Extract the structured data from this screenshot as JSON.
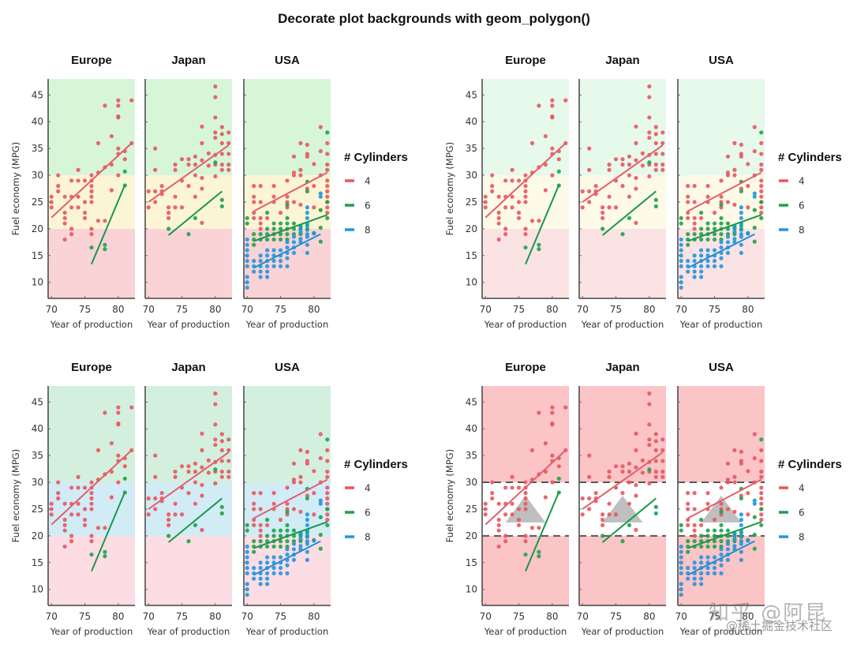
{
  "title": "Decorate plot backgrounds with geom_polygon()",
  "watermark": {
    "line1": "知乎 @阿昆",
    "line2": "@稀土掘金技术社区"
  },
  "chart_data": [
    {
      "type": "scatter",
      "variant": "three-band background (red / yellow / green)",
      "position": "top-left",
      "facets": [
        "Europe",
        "Japan",
        "USA"
      ],
      "xlabel": "Year of production",
      "ylabel": "Fuel economy (MPG)",
      "xticks": [
        70,
        75,
        80
      ],
      "yticks": [
        10,
        15,
        20,
        25,
        30,
        35,
        40,
        45
      ],
      "xlim": [
        69.5,
        82.5
      ],
      "ylim": [
        7,
        48
      ],
      "background_bands": [
        {
          "from": 7,
          "to": 20,
          "color": "#f9d3d5"
        },
        {
          "from": 20,
          "to": 30,
          "color": "#fbf5d6"
        },
        {
          "from": 30,
          "to": 48,
          "color": "#d7f6d8"
        }
      ],
      "dashed_lines": [],
      "triangle": false,
      "legend": {
        "title": "# Cylinders",
        "entries": [
          {
            "label": "4",
            "color": "#e8565f"
          },
          {
            "label": "6",
            "color": "#1ea24a"
          },
          {
            "label": "8",
            "color": "#1f96e0"
          }
        ]
      }
    },
    {
      "type": "scatter",
      "variant": "three-band background (pale pink / pale yellow / pale green)",
      "position": "top-right",
      "facets": [
        "Europe",
        "Japan",
        "USA"
      ],
      "xlabel": "Year of production",
      "ylabel": "Fuel economy (MPG)",
      "xticks": [
        70,
        75,
        80
      ],
      "yticks": [
        10,
        15,
        20,
        25,
        30,
        35,
        40,
        45
      ],
      "xlim": [
        69.5,
        82.5
      ],
      "ylim": [
        7,
        48
      ],
      "background_bands": [
        {
          "from": 7,
          "to": 20,
          "color": "#fbe3e4"
        },
        {
          "from": 20,
          "to": 30,
          "color": "#fdfae8"
        },
        {
          "from": 30,
          "to": 48,
          "color": "#e6f9ea"
        }
      ],
      "dashed_lines": [],
      "triangle": false,
      "legend": {
        "title": "# Cylinders",
        "entries": [
          {
            "label": "4",
            "color": "#e8565f"
          },
          {
            "label": "6",
            "color": "#1ea24a"
          },
          {
            "label": "8",
            "color": "#1f96e0"
          }
        ]
      }
    },
    {
      "type": "scatter",
      "variant": "three-band background (pink / light blue / mint)",
      "position": "bottom-left",
      "facets": [
        "Europe",
        "Japan",
        "USA"
      ],
      "xlabel": "Year of production",
      "ylabel": "Fuel economy (MPG)",
      "xticks": [
        70,
        75,
        80
      ],
      "yticks": [
        10,
        15,
        20,
        25,
        30,
        35,
        40,
        45
      ],
      "xlim": [
        69.5,
        82.5
      ],
      "ylim": [
        7,
        48
      ],
      "background_bands": [
        {
          "from": 7,
          "to": 20,
          "color": "#fbdde3"
        },
        {
          "from": 20,
          "to": 30,
          "color": "#d2ecf6"
        },
        {
          "from": 30,
          "to": 48,
          "color": "#d3f0de"
        }
      ],
      "dashed_lines": [],
      "triangle": false,
      "legend": {
        "title": "# Cylinders",
        "entries": [
          {
            "label": "4",
            "color": "#e8565f"
          },
          {
            "label": "6",
            "color": "#1ea24a"
          },
          {
            "label": "8",
            "color": "#1f96e0"
          }
        ]
      }
    },
    {
      "type": "scatter",
      "variant": "pink background with white band, dashed lines at 20 and 30, grey triangle",
      "position": "bottom-right",
      "facets": [
        "Europe",
        "Japan",
        "USA"
      ],
      "xlabel": "Year of production",
      "ylabel": "Fuel economy (MPG)",
      "xticks": [
        70,
        75,
        80
      ],
      "yticks": [
        10,
        15,
        20,
        25,
        30,
        35,
        40,
        45
      ],
      "xlim": [
        69.5,
        82.5
      ],
      "ylim": [
        7,
        48
      ],
      "background_bands": [
        {
          "from": 7,
          "to": 20,
          "color": "#fbc4c6"
        },
        {
          "from": 20,
          "to": 30,
          "color": "#ffffff"
        },
        {
          "from": 30,
          "to": 48,
          "color": "#fbc4c6"
        }
      ],
      "dashed_lines": [
        20,
        30
      ],
      "triangle": {
        "points": [
          [
            73,
            22.5
          ],
          [
            76,
            27.5
          ],
          [
            79,
            22.5
          ]
        ],
        "color": "#b8b8b8"
      },
      "legend": {
        "title": "# Cylinders",
        "entries": [
          {
            "label": "4",
            "color": "#e8565f"
          },
          {
            "label": "6",
            "color": "#1ea24a"
          },
          {
            "label": "8",
            "color": "#1f96e0"
          }
        ]
      }
    }
  ],
  "series_points": {
    "Europe": {
      "4": [
        [
          70,
          26
        ],
        [
          70,
          25
        ],
        [
          70,
          24
        ],
        [
          71,
          30
        ],
        [
          71,
          27
        ],
        [
          71,
          28
        ],
        [
          72,
          26
        ],
        [
          72,
          23
        ],
        [
          72,
          22
        ],
        [
          72,
          21
        ],
        [
          72,
          18
        ],
        [
          73,
          29
        ],
        [
          73,
          26
        ],
        [
          73,
          24
        ],
        [
          73,
          20
        ],
        [
          73,
          19
        ],
        [
          74,
          31
        ],
        [
          74,
          29
        ],
        [
          74,
          26
        ],
        [
          74,
          24
        ],
        [
          75,
          29
        ],
        [
          75,
          25
        ],
        [
          75,
          23
        ],
        [
          75,
          22
        ],
        [
          76,
          30
        ],
        [
          76,
          29
        ],
        [
          76,
          28
        ],
        [
          76,
          27
        ],
        [
          76,
          26
        ],
        [
          76,
          25
        ],
        [
          76,
          20
        ],
        [
          76,
          19
        ],
        [
          77,
          36
        ],
        [
          77,
          30.5
        ],
        [
          77,
          21.5
        ],
        [
          78,
          43
        ],
        [
          78,
          31.5
        ],
        [
          78,
          21.5
        ],
        [
          79,
          37.3
        ],
        [
          79,
          32
        ],
        [
          79,
          27.2
        ],
        [
          80,
          44
        ],
        [
          80,
          43
        ],
        [
          80,
          41
        ],
        [
          80,
          40.8
        ],
        [
          80,
          35
        ],
        [
          80,
          34
        ],
        [
          80,
          30
        ],
        [
          81,
          34.5
        ],
        [
          81,
          33
        ],
        [
          82,
          44
        ],
        [
          82,
          36
        ]
      ],
      "6": [
        [
          76,
          16.5
        ],
        [
          78,
          17
        ],
        [
          78,
          16.2
        ],
        [
          81,
          30.7
        ],
        [
          81,
          28.1
        ]
      ],
      "8": []
    },
    "Japan": {
      "4": [
        [
          70,
          27
        ],
        [
          70,
          24
        ],
        [
          71,
          35
        ],
        [
          71,
          31
        ],
        [
          71,
          27
        ],
        [
          71,
          25
        ],
        [
          72,
          28
        ],
        [
          72,
          27
        ],
        [
          72,
          26.5
        ],
        [
          73,
          24
        ],
        [
          73,
          23
        ],
        [
          73,
          22
        ],
        [
          74,
          32
        ],
        [
          74,
          31
        ],
        [
          74,
          26
        ],
        [
          74,
          24
        ],
        [
          75,
          33
        ],
        [
          75,
          29
        ],
        [
          75,
          24
        ],
        [
          76,
          33
        ],
        [
          76,
          32
        ],
        [
          76,
          28
        ],
        [
          77,
          33.5
        ],
        [
          77,
          32
        ],
        [
          77,
          30
        ],
        [
          77,
          26
        ],
        [
          78,
          39.1
        ],
        [
          78,
          36
        ],
        [
          78,
          32.8
        ],
        [
          78,
          29.5
        ],
        [
          78,
          27.5
        ],
        [
          78,
          21.1
        ],
        [
          79,
          34.1
        ],
        [
          79,
          31.8
        ],
        [
          80,
          46.6
        ],
        [
          80,
          44.6
        ],
        [
          80,
          40.8
        ],
        [
          80,
          38
        ],
        [
          80,
          37
        ],
        [
          80,
          33.8
        ],
        [
          80,
          32
        ],
        [
          80,
          29.8
        ],
        [
          81,
          39
        ],
        [
          81,
          37.7
        ],
        [
          81,
          36
        ],
        [
          81,
          34
        ],
        [
          81,
          32
        ],
        [
          81,
          31
        ],
        [
          82,
          38
        ],
        [
          82,
          36
        ],
        [
          82,
          34
        ],
        [
          82,
          32
        ],
        [
          82,
          31
        ]
      ],
      "6": [
        [
          73,
          20
        ],
        [
          76,
          19
        ],
        [
          77,
          22
        ],
        [
          80,
          32.4
        ],
        [
          81,
          25.4
        ],
        [
          81,
          24.2
        ]
      ],
      "8": []
    },
    "USA": {
      "4": [
        [
          71,
          28
        ],
        [
          71,
          26
        ],
        [
          71,
          25
        ],
        [
          71,
          23
        ],
        [
          71,
          22
        ],
        [
          72,
          28
        ],
        [
          72,
          25
        ],
        [
          72,
          22
        ],
        [
          72,
          21
        ],
        [
          72,
          20
        ],
        [
          73,
          22
        ],
        [
          74,
          28
        ],
        [
          74,
          26
        ],
        [
          74,
          25
        ],
        [
          75,
          23
        ],
        [
          76,
          29
        ],
        [
          76,
          26
        ],
        [
          76,
          25
        ],
        [
          76,
          24
        ],
        [
          77,
          33.5
        ],
        [
          77,
          30.5
        ],
        [
          77,
          30
        ],
        [
          77,
          25
        ],
        [
          78,
          36
        ],
        [
          78,
          31
        ],
        [
          78,
          30
        ],
        [
          78,
          24.5
        ],
        [
          79,
          35.7
        ],
        [
          79,
          34
        ],
        [
          79,
          33.5
        ],
        [
          79,
          27.5
        ],
        [
          80,
          32.1
        ],
        [
          80,
          28
        ],
        [
          80,
          24
        ],
        [
          81,
          39
        ],
        [
          81,
          34.5
        ],
        [
          81,
          30
        ],
        [
          82,
          36
        ],
        [
          82,
          34
        ],
        [
          82,
          32
        ],
        [
          82,
          31
        ],
        [
          82,
          29
        ],
        [
          82,
          28
        ],
        [
          82,
          27
        ],
        [
          82,
          26
        ],
        [
          82,
          25
        ],
        [
          82,
          24
        ],
        [
          82,
          23
        ]
      ],
      "6": [
        [
          70,
          22
        ],
        [
          70,
          21
        ],
        [
          71,
          19
        ],
        [
          71,
          18
        ],
        [
          71,
          17
        ],
        [
          72,
          19
        ],
        [
          72,
          18
        ],
        [
          73,
          23
        ],
        [
          73,
          20
        ],
        [
          73,
          19
        ],
        [
          73,
          18
        ],
        [
          74,
          21
        ],
        [
          74,
          20
        ],
        [
          74,
          19
        ],
        [
          74,
          18
        ],
        [
          75,
          21
        ],
        [
          75,
          20
        ],
        [
          75,
          19
        ],
        [
          75,
          18
        ],
        [
          76,
          24.5
        ],
        [
          76,
          22
        ],
        [
          76,
          21
        ],
        [
          76,
          20
        ],
        [
          76,
          19
        ],
        [
          76,
          18
        ],
        [
          77,
          21
        ],
        [
          77,
          20
        ],
        [
          77,
          19
        ],
        [
          78,
          20.5
        ],
        [
          78,
          20
        ],
        [
          78,
          19
        ],
        [
          79,
          28.8
        ],
        [
          79,
          27
        ],
        [
          79,
          20.6
        ],
        [
          79,
          19.8
        ],
        [
          80,
          19.2
        ],
        [
          81,
          23.5
        ],
        [
          81,
          20.2
        ],
        [
          81,
          17.6
        ],
        [
          82,
          38
        ],
        [
          82,
          25
        ],
        [
          82,
          22
        ]
      ],
      "8": [
        [
          70,
          18
        ],
        [
          70,
          17
        ],
        [
          70,
          16
        ],
        [
          70,
          15
        ],
        [
          70,
          14
        ],
        [
          70,
          13
        ],
        [
          70,
          11
        ],
        [
          70,
          10
        ],
        [
          70,
          9
        ],
        [
          71,
          14
        ],
        [
          71,
          13
        ],
        [
          71,
          12
        ],
        [
          72,
          15
        ],
        [
          72,
          14
        ],
        [
          72,
          13
        ],
        [
          72,
          12
        ],
        [
          72,
          11
        ],
        [
          73,
          16
        ],
        [
          73,
          15
        ],
        [
          73,
          14
        ],
        [
          73,
          13
        ],
        [
          73,
          12
        ],
        [
          73,
          11
        ],
        [
          74,
          16
        ],
        [
          74,
          15
        ],
        [
          74,
          14
        ],
        [
          74,
          13
        ],
        [
          75,
          16
        ],
        [
          75,
          15
        ],
        [
          75,
          14
        ],
        [
          75,
          13
        ],
        [
          76,
          17.5
        ],
        [
          76,
          16.5
        ],
        [
          76,
          15.5
        ],
        [
          76,
          14.5
        ],
        [
          76,
          13
        ],
        [
          77,
          18.5
        ],
        [
          77,
          17.5
        ],
        [
          77,
          16.5
        ],
        [
          77,
          15.5
        ],
        [
          78,
          20.2
        ],
        [
          78,
          19.4
        ],
        [
          78,
          18.1
        ],
        [
          78,
          17.5
        ],
        [
          79,
          24
        ],
        [
          79,
          23
        ],
        [
          79,
          22
        ],
        [
          79,
          21
        ],
        [
          79,
          20
        ],
        [
          79,
          19
        ],
        [
          79,
          18.5
        ],
        [
          79,
          17
        ],
        [
          79,
          15.5
        ],
        [
          80,
          19.1
        ],
        [
          81,
          26.6
        ],
        [
          81,
          26
        ]
      ]
    }
  },
  "trend_lines": {
    "Europe": {
      "4": [
        [
          70,
          22.1
        ],
        [
          82,
          36
        ]
      ],
      "6": [
        [
          76,
          13.4
        ],
        [
          81,
          28.2
        ]
      ]
    },
    "Japan": {
      "4": [
        [
          70,
          25
        ],
        [
          82,
          35.6
        ]
      ],
      "6": [
        [
          73,
          18.8
        ],
        [
          81,
          27
        ]
      ]
    },
    "USA": {
      "4": [
        [
          71,
          23.3
        ],
        [
          82,
          30.5
        ]
      ],
      "6": [
        [
          71,
          17.7
        ],
        [
          82,
          22.6
        ]
      ],
      "8": [
        [
          71,
          12.7
        ],
        [
          81,
          19
        ]
      ]
    }
  }
}
